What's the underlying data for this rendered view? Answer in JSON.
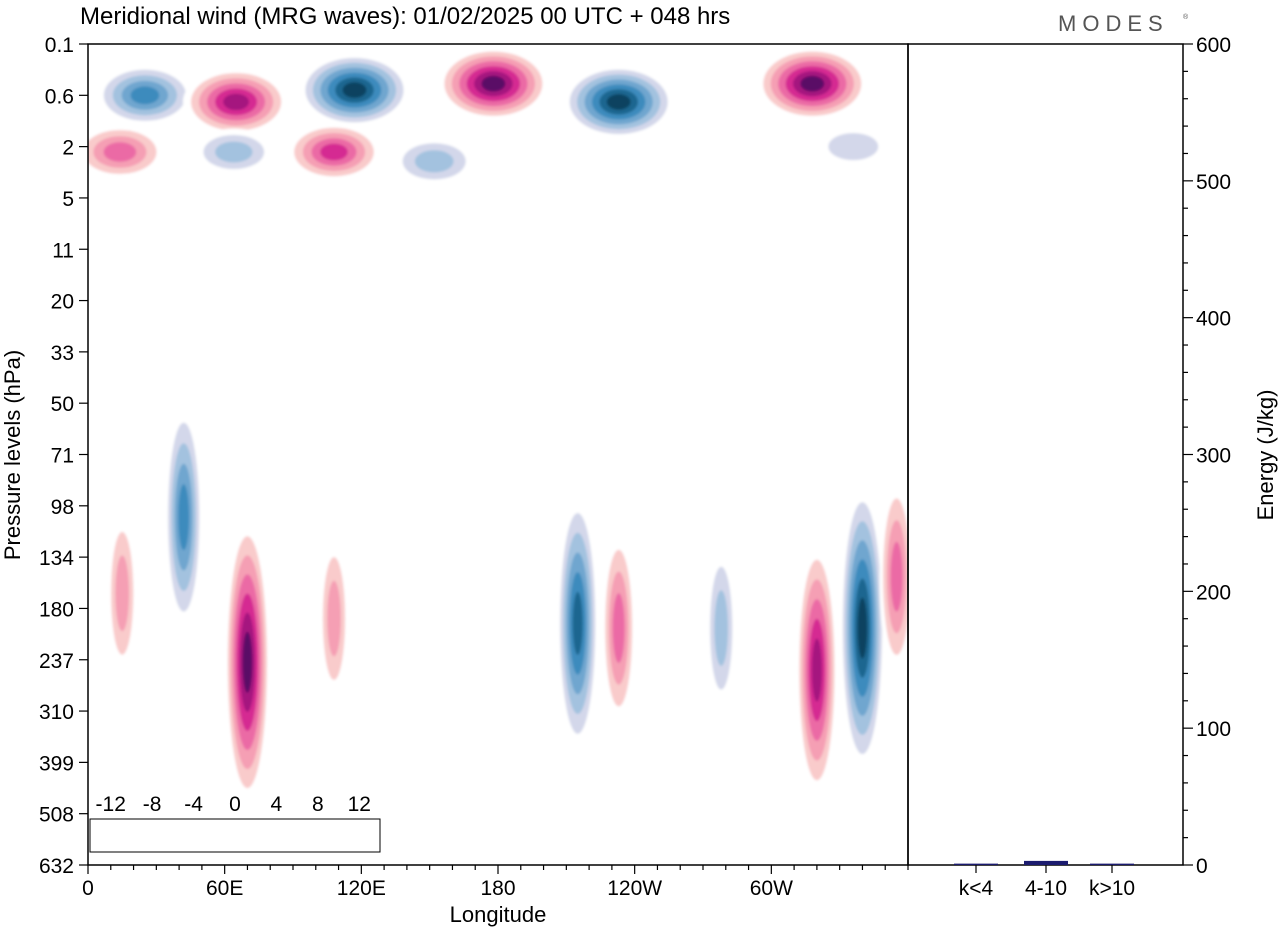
{
  "header": {
    "title": "Meridional wind (MRG waves):  01/02/2025  00 UTC  + 048 hrs",
    "logo": "MODES",
    "logo_mark": "®"
  },
  "chart_data": [
    {
      "type": "heatmap",
      "title": "Meridional wind (MRG waves):  01/02/2025  00 UTC  + 048 hrs",
      "xlabel": "Longitude",
      "ylabel": "Pressure levels (hPa)",
      "x_tick_labels": [
        "0",
        "60E",
        "120E",
        "180",
        "120W",
        "60W"
      ],
      "x_tick_degrees": [
        0,
        60,
        120,
        180,
        240,
        300
      ],
      "xlim": [
        0,
        360
      ],
      "y_tick_labels": [
        "0.1",
        "0.6",
        "2",
        "5",
        "11",
        "20",
        "33",
        "50",
        "71",
        "98",
        "134",
        "180",
        "237",
        "310",
        "399",
        "508",
        "632"
      ],
      "colorbar": {
        "labels": [
          "-12",
          "-8",
          "-4",
          "0",
          "4",
          "8",
          "12"
        ],
        "levels": [
          -14,
          -12,
          -10,
          -8,
          -6,
          -4,
          -2,
          0,
          2,
          4,
          6,
          8,
          10,
          12,
          14
        ],
        "colors": [
          "#0e4260",
          "#1a6690",
          "#3c8bbd",
          "#6fa6cf",
          "#a3c2df",
          "#d3d7ea",
          "#ffffff",
          "#ffffff",
          "#f9cbcb",
          "#f59fb4",
          "#eb6aa5",
          "#d52a92",
          "#a5127f",
          "#5a0966"
        ]
      },
      "features": [
        {
          "lon": 25,
          "level": 0.6,
          "value": -10
        },
        {
          "lon": 65,
          "level": 0.7,
          "value": 12
        },
        {
          "lon": 117,
          "level": 0.5,
          "value": -14
        },
        {
          "lon": 178,
          "level": 0.4,
          "value": 14
        },
        {
          "lon": 233,
          "level": 0.7,
          "value": -14
        },
        {
          "lon": 318,
          "level": 0.4,
          "value": 14
        },
        {
          "lon": 14,
          "level": 2.2,
          "value": 8
        },
        {
          "lon": 64,
          "level": 2.2,
          "value": -5
        },
        {
          "lon": 108,
          "level": 2.2,
          "value": 9
        },
        {
          "lon": 152,
          "level": 2.6,
          "value": -6
        },
        {
          "lon": 336,
          "level": 2.0,
          "value": -4
        },
        {
          "lon": 42,
          "level": 105,
          "value": -10
        },
        {
          "lon": 70,
          "level": 240,
          "value": 14
        },
        {
          "lon": 15,
          "level": 165,
          "value": 6
        },
        {
          "lon": 108,
          "level": 190,
          "value": 6
        },
        {
          "lon": 215,
          "level": 195,
          "value": -12
        },
        {
          "lon": 233,
          "level": 200,
          "value": 8
        },
        {
          "lon": 278,
          "level": 200,
          "value": -6
        },
        {
          "lon": 320,
          "level": 250,
          "value": 12
        },
        {
          "lon": 340,
          "level": 200,
          "value": -14
        },
        {
          "lon": 355,
          "level": 150,
          "value": 8
        }
      ]
    },
    {
      "type": "bar",
      "categories": [
        "k<4",
        "4-10",
        "k>10"
      ],
      "values": [
        1,
        3,
        1
      ],
      "ylabel": "Energy (J/kg)",
      "ylim": [
        0,
        600
      ],
      "y_tick_labels": [
        "0",
        "100",
        "200",
        "300",
        "400",
        "500",
        "600"
      ],
      "bar_color": "#1b1b6e"
    }
  ]
}
